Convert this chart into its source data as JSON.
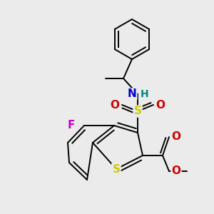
{
  "bg_color": "#ebebeb",
  "bond_color": "#000000",
  "bond_lw": 1.4,
  "fig_width": 3.0,
  "fig_height": 3.0,
  "dpi": 100,
  "colors": {
    "S": "#cccc00",
    "N": "#0000cc",
    "H": "#008888",
    "F": "#cc00cc",
    "O": "#cc0000",
    "C": "#000000"
  }
}
